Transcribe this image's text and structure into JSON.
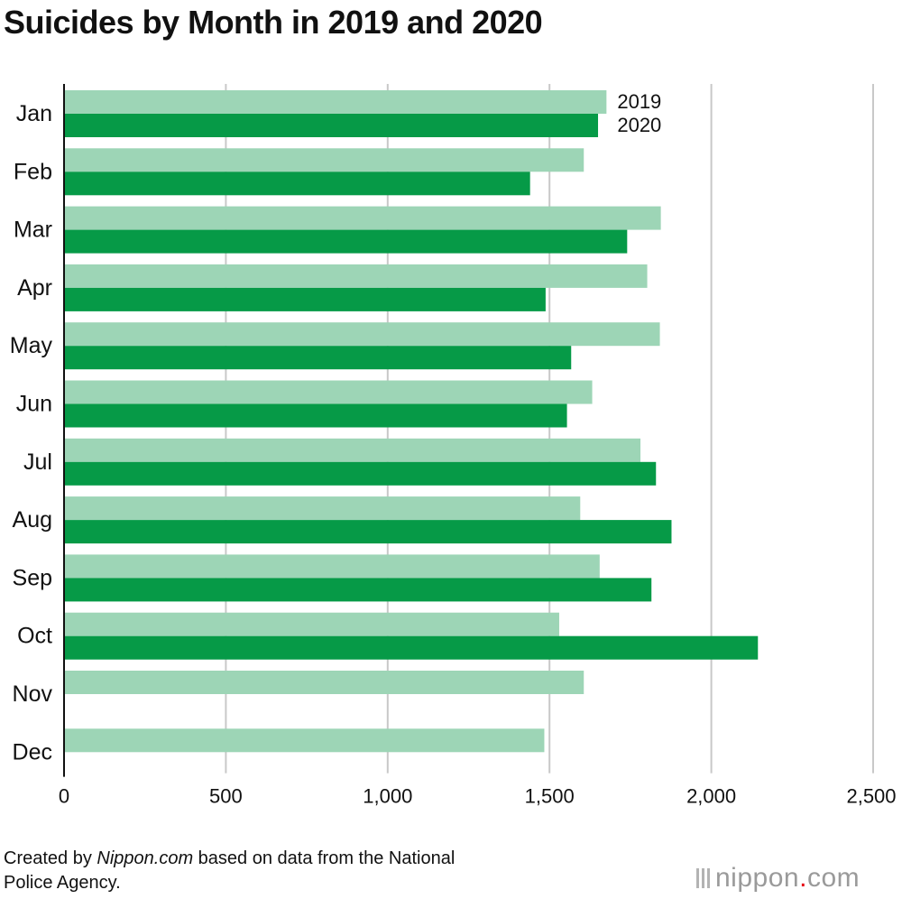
{
  "chart_data": {
    "type": "bar",
    "orientation": "horizontal",
    "title": "Suicides by Month in 2019 and 2020",
    "categories": [
      "Jan",
      "Feb",
      "Mar",
      "Apr",
      "May",
      "Jun",
      "Jul",
      "Aug",
      "Sep",
      "Oct",
      "Nov",
      "Dec"
    ],
    "series": [
      {
        "name": "2019",
        "color": "#9dd5b6",
        "values": [
          1676,
          1606,
          1844,
          1802,
          1841,
          1632,
          1781,
          1595,
          1655,
          1530,
          1606,
          1484
        ]
      },
      {
        "name": "2020",
        "color": "#069a47",
        "values": [
          1650,
          1440,
          1740,
          1488,
          1567,
          1554,
          1829,
          1877,
          1815,
          2144,
          null,
          null
        ]
      }
    ],
    "xlim": [
      0,
      2500
    ],
    "xticks": [
      0,
      500,
      1000,
      1500,
      2000,
      2500
    ],
    "xtick_labels": [
      "0",
      "500",
      "1,000",
      "1,500",
      "2,000",
      "2,500"
    ],
    "grid": true,
    "legend": "series labels beside the Jan bars"
  },
  "footer": {
    "prefix": "Created by ",
    "source_name": "Nippon.com",
    "line1_suffix": " based on data from the National",
    "line2": "Police Agency."
  },
  "logo": {
    "name": "nippon",
    "dot": ".",
    "suffix": "com"
  }
}
